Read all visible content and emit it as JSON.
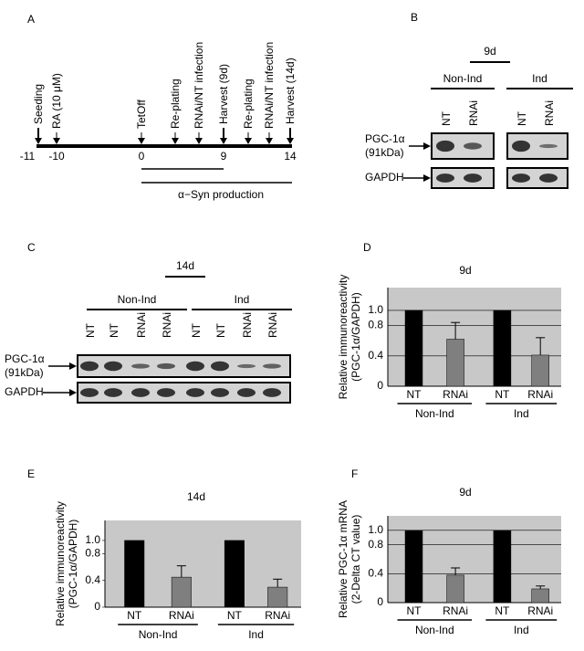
{
  "panel_labels": [
    "A",
    "B",
    "C",
    "D",
    "E",
    "F"
  ],
  "timeline": {
    "events": [
      "Seeding",
      "RA (10 μM)",
      "TetOff",
      "Re-plating",
      "RNAi/NT infection",
      "Harvest (9d)",
      "Re-plating",
      "RNAi/NT infection",
      "Harvest (14d)"
    ],
    "days": [
      "-11",
      "-10",
      "0",
      "9",
      "14"
    ],
    "bar_label": "α−Syn production"
  },
  "blot_b": {
    "time": "9d",
    "groups": [
      "Non-Ind",
      "Ind"
    ],
    "lanes": [
      "NT",
      "RNAi",
      "NT",
      "RNAi"
    ],
    "rows": [
      {
        "name": "PGC-1α",
        "size": "(91kDa)"
      },
      {
        "name": "GAPDH"
      }
    ]
  },
  "blot_c": {
    "time": "14d",
    "groups": [
      "Non-Ind",
      "Ind"
    ],
    "lanes": [
      "NT",
      "NT",
      "RNAi",
      "RNAi",
      "NT",
      "NT",
      "RNAi",
      "RNAi"
    ],
    "rows": [
      {
        "name": "PGC-1α",
        "size": "(91kDa)"
      },
      {
        "name": "GAPDH"
      }
    ]
  },
  "chart_data": [
    {
      "type": "bar",
      "title": "9d",
      "y_label": [
        "Relative immunoreactivity",
        "(PGC-1α/GAPDH)"
      ],
      "categories": [
        "NT",
        "RNAi",
        "NT",
        "RNAi"
      ],
      "groups": [
        "Non-Ind",
        "Ind"
      ],
      "values": [
        1,
        0.62,
        1,
        0.41
      ],
      "errors": [
        null,
        0.22,
        null,
        0.23
      ],
      "colors": [
        "#000000",
        "#7f7f7f",
        "#000000",
        "#7f7f7f"
      ],
      "ylim": [
        0,
        1.3
      ],
      "yticks": [
        0,
        0.4,
        0.8,
        {
          "value": 1,
          "label": "1.0"
        }
      ],
      "grid": true
    },
    {
      "type": "bar",
      "title": "14d",
      "y_label": [
        "Relative immunoreactivity",
        "(PGC-1α/GAPDH)"
      ],
      "categories": [
        "NT",
        "RNAi",
        "NT",
        "RNAi"
      ],
      "groups": [
        "Non-Ind",
        "Ind"
      ],
      "values": [
        1,
        0.45,
        1,
        0.3
      ],
      "errors": [
        null,
        0.17,
        null,
        0.12
      ],
      "colors": [
        "#000000",
        "#7f7f7f",
        "#000000",
        "#7f7f7f"
      ],
      "ylim": [
        0,
        1.3
      ],
      "yticks": [
        0,
        0.4,
        0.8,
        {
          "value": 1,
          "label": "1.0"
        }
      ],
      "grid": false
    },
    {
      "type": "bar",
      "title": "9d",
      "y_label": [
        "Relative PGC-1α mRNA",
        "(2-Delta CT value)"
      ],
      "categories": [
        "NT",
        "RNAi",
        "NT",
        "RNAi"
      ],
      "groups": [
        "Non-Ind",
        "Ind"
      ],
      "values": [
        1,
        0.38,
        1,
        0.19
      ],
      "errors": [
        null,
        0.1,
        null,
        0.04
      ],
      "colors": [
        "#000000",
        "#7f7f7f",
        "#000000",
        "#7f7f7f"
      ],
      "ylim": [
        0,
        1.2
      ],
      "yticks": [
        0,
        0.4,
        0.8,
        {
          "value": 1,
          "label": "1.0"
        }
      ],
      "grid": true
    }
  ]
}
